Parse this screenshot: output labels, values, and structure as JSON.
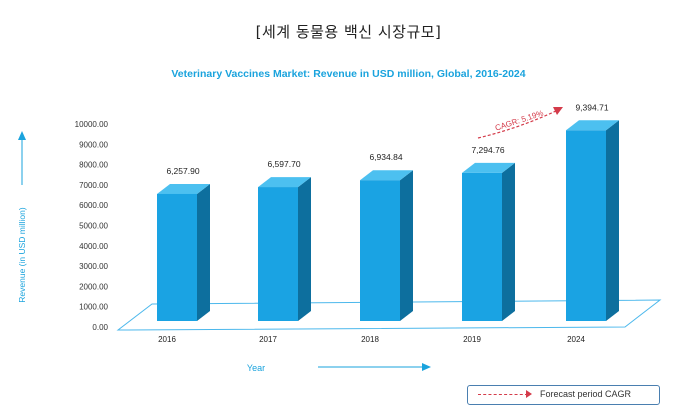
{
  "page_title": "[세계 동물용 백신 시장규모]",
  "legend_label": "Forecast period CAGR",
  "colors": {
    "accent": "#1aa3dd",
    "bar_front": "#1aa3e3",
    "bar_side": "#0d6f9e",
    "bar_top": "#4cc0f0",
    "cagr": "#d43b4a"
  },
  "chart_data": {
    "type": "bar",
    "title": "Veterinary Vaccines Market: Revenue in USD million, Global, 2016-2024",
    "xlabel": "Year",
    "ylabel": "Revenue (in USD million)",
    "ylim": [
      0,
      10000
    ],
    "yticks": [
      "0.00",
      "1000.00",
      "2000.00",
      "3000.00",
      "4000.00",
      "5000.00",
      "6000.00",
      "7000.00",
      "8000.00",
      "9000.00",
      "10000.00"
    ],
    "categories": [
      "2016",
      "2017",
      "2018",
      "2019",
      "2024"
    ],
    "values": [
      6257.9,
      6597.7,
      6934.84,
      7294.76,
      9394.71
    ],
    "value_labels": [
      "6,257.90",
      "6,597.70",
      "6,934.84",
      "7,294.76",
      "9,394.71"
    ],
    "annotation": "CAGR: 5.19%",
    "grid": false
  }
}
